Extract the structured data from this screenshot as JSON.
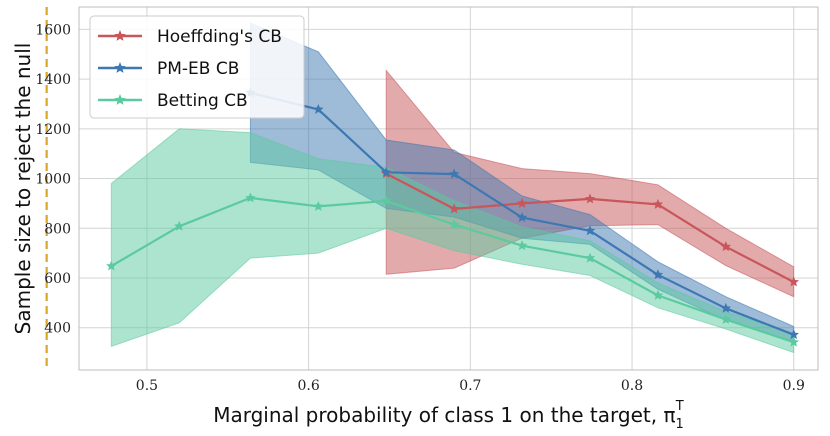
{
  "chart_data": {
    "type": "line",
    "xlabel": "Marginal probability of class 1 on the target, π",
    "xlabel_sub": "1",
    "xlabel_sup": "T",
    "ylabel": "Sample size to reject the null",
    "xlim": [
      0.458,
      0.915
    ],
    "ylim": [
      230,
      1690
    ],
    "xticks": [
      0.5,
      0.6,
      0.7,
      0.8,
      0.9
    ],
    "xtick_labels": [
      "0.5",
      "0.6",
      "0.7",
      "0.8",
      "0.9"
    ],
    "yticks": [
      400,
      600,
      800,
      1000,
      1200,
      1400,
      1600
    ],
    "ytick_labels": [
      "400",
      "600",
      "800",
      "1000",
      "1200",
      "1400",
      "1600"
    ],
    "grid": true,
    "legend_position": "top-left",
    "vline": {
      "x": 0.438,
      "color": "#d9a62a",
      "style": "dashed"
    },
    "series": [
      {
        "name": "Hoeffding's CB",
        "color": "#c8565a",
        "x": [
          0.648,
          0.69,
          0.732,
          0.774,
          0.816,
          0.858,
          0.9
        ],
        "values": [
          1020,
          878,
          900,
          918,
          896,
          726,
          584
        ],
        "lower": [
          615,
          640,
          760,
          810,
          815,
          650,
          525
        ],
        "upper": [
          1435,
          1105,
          1040,
          1020,
          975,
          800,
          645
        ]
      },
      {
        "name": "PM-EB CB",
        "color": "#3e78b2",
        "x": [
          0.564,
          0.606,
          0.648,
          0.69,
          0.732,
          0.774,
          0.816,
          0.858,
          0.9
        ],
        "values": [
          1345,
          1278,
          1025,
          1018,
          843,
          790,
          613,
          478,
          372
        ],
        "lower": [
          1065,
          1035,
          880,
          845,
          760,
          735,
          555,
          430,
          345
        ],
        "upper": [
          1625,
          1510,
          1155,
          1115,
          930,
          855,
          665,
          525,
          405
        ]
      },
      {
        "name": "Betting CB",
        "color": "#5ccaa0",
        "x": [
          0.478,
          0.52,
          0.564,
          0.606,
          0.648,
          0.69,
          0.732,
          0.774,
          0.816,
          0.858,
          0.9
        ],
        "values": [
          648,
          808,
          922,
          888,
          910,
          815,
          730,
          680,
          530,
          433,
          342
        ],
        "lower": [
          325,
          420,
          680,
          700,
          800,
          710,
          655,
          610,
          480,
          395,
          300
        ],
        "upper": [
          980,
          1200,
          1185,
          1080,
          1045,
          910,
          805,
          750,
          580,
          465,
          375
        ]
      }
    ]
  }
}
